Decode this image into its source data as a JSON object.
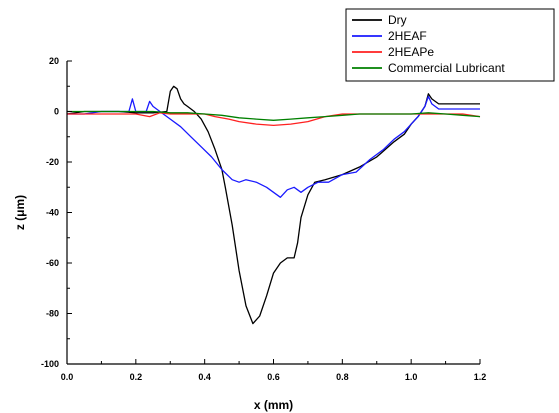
{
  "chart_data": {
    "type": "line",
    "xlabel": "x (mm)",
    "ylabel": "z (μm)",
    "xlim": [
      0.0,
      1.2
    ],
    "ylim": [
      -100,
      20
    ],
    "x_ticks": [
      0.0,
      0.2,
      0.4,
      0.6,
      0.8,
      1.0,
      1.2
    ],
    "x_tick_labels": [
      "0.0",
      "0.2",
      "0.4",
      "0.6",
      "0.8",
      "1.0",
      "1.2"
    ],
    "y_ticks": [
      20,
      0,
      -20,
      -40,
      -60,
      -80,
      -100
    ],
    "y_tick_labels": [
      "20",
      "0",
      "-20",
      "-40",
      "-60",
      "-80",
      "-100"
    ],
    "grid": false,
    "legend_position": "top-right",
    "series": [
      {
        "name": "Dry",
        "color": "#000000",
        "points": [
          [
            0.0,
            -1
          ],
          [
            0.05,
            0
          ],
          [
            0.1,
            0
          ],
          [
            0.15,
            0
          ],
          [
            0.2,
            -0.5
          ],
          [
            0.25,
            -0.5
          ],
          [
            0.29,
            0
          ],
          [
            0.3,
            8
          ],
          [
            0.31,
            10
          ],
          [
            0.32,
            9
          ],
          [
            0.33,
            5
          ],
          [
            0.34,
            3
          ],
          [
            0.35,
            2
          ],
          [
            0.37,
            0
          ],
          [
            0.39,
            -3
          ],
          [
            0.41,
            -8
          ],
          [
            0.43,
            -15
          ],
          [
            0.45,
            -23
          ],
          [
            0.46,
            -30
          ],
          [
            0.48,
            -45
          ],
          [
            0.5,
            -63
          ],
          [
            0.52,
            -77
          ],
          [
            0.54,
            -84
          ],
          [
            0.56,
            -81
          ],
          [
            0.58,
            -73
          ],
          [
            0.6,
            -64
          ],
          [
            0.62,
            -60
          ],
          [
            0.64,
            -58
          ],
          [
            0.66,
            -58
          ],
          [
            0.67,
            -52
          ],
          [
            0.68,
            -42
          ],
          [
            0.7,
            -33
          ],
          [
            0.72,
            -28
          ],
          [
            0.75,
            -27
          ],
          [
            0.8,
            -25
          ],
          [
            0.85,
            -22
          ],
          [
            0.9,
            -18
          ],
          [
            0.95,
            -12
          ],
          [
            0.98,
            -9
          ],
          [
            1.0,
            -5
          ],
          [
            1.02,
            -2
          ],
          [
            1.04,
            2
          ],
          [
            1.05,
            7
          ],
          [
            1.06,
            5
          ],
          [
            1.08,
            3
          ],
          [
            1.1,
            3
          ],
          [
            1.15,
            3
          ],
          [
            1.2,
            3
          ]
        ]
      },
      {
        "name": "2HEAF",
        "color": "#1a1aff",
        "points": [
          [
            0.0,
            -1
          ],
          [
            0.05,
            -1
          ],
          [
            0.1,
            0
          ],
          [
            0.15,
            0
          ],
          [
            0.18,
            0
          ],
          [
            0.19,
            5
          ],
          [
            0.2,
            0
          ],
          [
            0.23,
            0
          ],
          [
            0.24,
            4
          ],
          [
            0.25,
            2
          ],
          [
            0.27,
            0
          ],
          [
            0.3,
            -3
          ],
          [
            0.33,
            -6
          ],
          [
            0.36,
            -10
          ],
          [
            0.39,
            -14
          ],
          [
            0.42,
            -18
          ],
          [
            0.45,
            -23
          ],
          [
            0.48,
            -27
          ],
          [
            0.5,
            -28
          ],
          [
            0.52,
            -27
          ],
          [
            0.55,
            -28
          ],
          [
            0.58,
            -30
          ],
          [
            0.6,
            -32
          ],
          [
            0.62,
            -34
          ],
          [
            0.64,
            -31
          ],
          [
            0.66,
            -30
          ],
          [
            0.68,
            -32
          ],
          [
            0.7,
            -30
          ],
          [
            0.73,
            -28
          ],
          [
            0.76,
            -28
          ],
          [
            0.8,
            -25
          ],
          [
            0.84,
            -24
          ],
          [
            0.88,
            -19
          ],
          [
            0.92,
            -15
          ],
          [
            0.95,
            -11
          ],
          [
            0.98,
            -8
          ],
          [
            1.0,
            -5
          ],
          [
            1.02,
            -2
          ],
          [
            1.04,
            2
          ],
          [
            1.05,
            6
          ],
          [
            1.06,
            3
          ],
          [
            1.08,
            1
          ],
          [
            1.12,
            1
          ],
          [
            1.16,
            1
          ],
          [
            1.2,
            1
          ]
        ]
      },
      {
        "name": "2HEAPe",
        "color": "#ff2020",
        "points": [
          [
            0.0,
            -1
          ],
          [
            0.05,
            -1
          ],
          [
            0.1,
            -1
          ],
          [
            0.15,
            -1
          ],
          [
            0.2,
            -1
          ],
          [
            0.24,
            -2
          ],
          [
            0.27,
            -0.5
          ],
          [
            0.3,
            -1
          ],
          [
            0.35,
            -1
          ],
          [
            0.4,
            -1
          ],
          [
            0.43,
            -2
          ],
          [
            0.47,
            -3
          ],
          [
            0.5,
            -4
          ],
          [
            0.55,
            -5
          ],
          [
            0.6,
            -5.5
          ],
          [
            0.65,
            -5
          ],
          [
            0.7,
            -4
          ],
          [
            0.75,
            -2
          ],
          [
            0.8,
            -1
          ],
          [
            0.85,
            -1
          ],
          [
            0.9,
            -1
          ],
          [
            0.95,
            -1
          ],
          [
            1.0,
            -1
          ],
          [
            1.05,
            -1
          ],
          [
            1.1,
            -1
          ],
          [
            1.15,
            -1
          ],
          [
            1.2,
            -2
          ]
        ]
      },
      {
        "name": "Commercial Lubricant",
        "color": "#008000",
        "points": [
          [
            0.0,
            0
          ],
          [
            0.05,
            0
          ],
          [
            0.1,
            0
          ],
          [
            0.15,
            0
          ],
          [
            0.2,
            0
          ],
          [
            0.25,
            0
          ],
          [
            0.3,
            -0.5
          ],
          [
            0.35,
            -0.5
          ],
          [
            0.4,
            -1
          ],
          [
            0.45,
            -1.5
          ],
          [
            0.5,
            -2.5
          ],
          [
            0.55,
            -3
          ],
          [
            0.6,
            -3.5
          ],
          [
            0.65,
            -3
          ],
          [
            0.7,
            -2.5
          ],
          [
            0.75,
            -2
          ],
          [
            0.8,
            -1.5
          ],
          [
            0.85,
            -1
          ],
          [
            0.9,
            -1
          ],
          [
            0.95,
            -1
          ],
          [
            1.0,
            -1
          ],
          [
            1.05,
            -0.5
          ],
          [
            1.1,
            -1
          ],
          [
            1.15,
            -1.5
          ],
          [
            1.2,
            -2
          ]
        ]
      }
    ]
  }
}
